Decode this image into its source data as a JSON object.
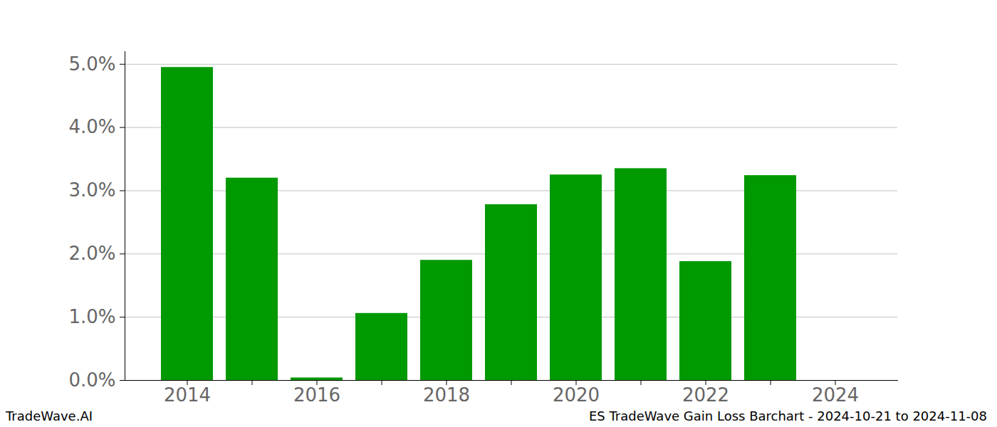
{
  "chart_data": {
    "type": "bar",
    "categories": [
      "2014",
      null,
      "2016",
      null,
      "2018",
      null,
      "2020",
      null,
      "2022",
      null,
      "2024"
    ],
    "values": [
      4.95,
      3.2,
      0.04,
      1.06,
      1.9,
      2.78,
      3.25,
      3.35,
      1.88,
      3.24,
      null
    ],
    "color": "#009900",
    "ylim": [
      0,
      5.2
    ],
    "yticks": [
      {
        "value": 0,
        "label": "0.0%"
      },
      {
        "value": 1,
        "label": "1.0%"
      },
      {
        "value": 2,
        "label": "2.0%"
      },
      {
        "value": 3,
        "label": "3.0%"
      },
      {
        "value": 4,
        "label": "4.0%"
      },
      {
        "value": 5,
        "label": "5.0%"
      }
    ],
    "grid": true,
    "footer": {
      "left": "TradeWave.AI",
      "right": "ES TradeWave Gain Loss Barchart - 2024-10-21 to 2024-11-08"
    }
  }
}
